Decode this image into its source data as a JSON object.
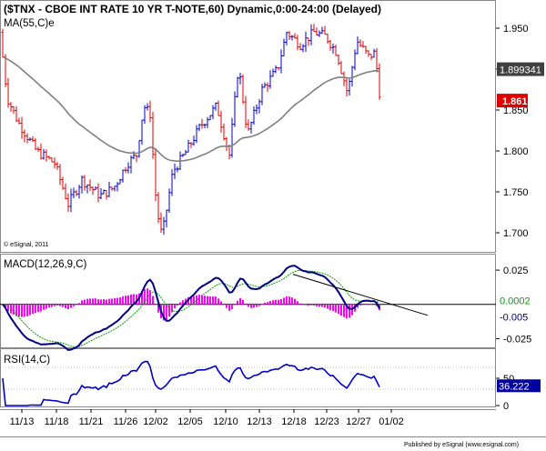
{
  "chart_data": [
    {
      "type": "ohlc",
      "title": "($TNX - CBOE INT RATE 10 YR T-NOTE,60) Dynamic,0:00-24:00 (Delayed)",
      "indicator_label": "MA(55,C)e",
      "copyright": "© eSignal, 2011",
      "ylim": [
        1.68,
        1.98
      ],
      "y_ticks": [
        "1.950",
        "1.900",
        "1.850",
        "1.800",
        "1.750",
        "1.700"
      ],
      "last_price": "1.861",
      "ma_value": "1.899341",
      "colors": {
        "up": "#0000c8",
        "down": "#e00000",
        "ma": "#808080",
        "last_bg": "#e00000",
        "ma_bg": "#404040"
      }
    },
    {
      "type": "line",
      "title": "MACD(12,26,9,C)",
      "ylim": [
        -0.03,
        0.035
      ],
      "y_ticks": [
        "0.025",
        "-0.025"
      ],
      "value_labels": [
        "0.0002",
        "-0.005"
      ],
      "colors": {
        "macd": "#000080",
        "signal": "#00a000",
        "hist": "#ff00ff",
        "trendline": "#000000"
      }
    },
    {
      "type": "line",
      "title": "RSI(14,C)",
      "ylim": [
        0,
        100
      ],
      "y_ticks": [
        "50",
        "0"
      ],
      "value_label": "36.222",
      "colors": {
        "rsi": "#0000c8",
        "ref": "#808080"
      }
    }
  ],
  "x_axis": {
    "tick_labels": [
      "11/13",
      "11/18",
      "11/21",
      "11/26",
      "12/02",
      "12/05",
      "12/10",
      "12/13",
      "12/18",
      "12/23",
      "12/27",
      "01/02"
    ]
  },
  "footer": "Published by eSignal (www.esignal.com)"
}
